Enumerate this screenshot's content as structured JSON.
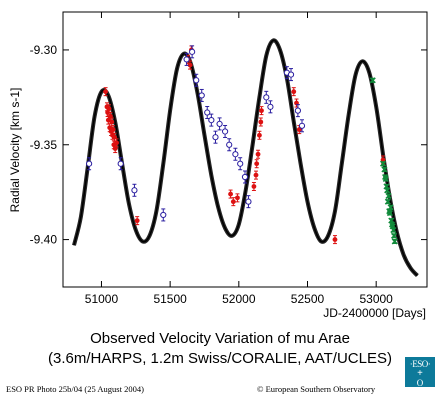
{
  "chart_data": {
    "type": "scatter",
    "title": "Observed Velocity Variation of mu Arae",
    "subtitle": "(3.6m/HARPS, 1.2m Swiss/CORALIE, AAT/UCLES)",
    "xlabel": "JD-2400000 [Days]",
    "ylabel": "Radial Velocity [km s-1]",
    "xlim": [
      50720,
      53370
    ],
    "ylim": [
      -9.425,
      -9.28
    ],
    "xticks": [
      51000,
      51500,
      52000,
      52500,
      53000
    ],
    "xtick_labels": [
      "51000",
      "51500",
      "52000",
      "52500",
      "53000"
    ],
    "yticks": [
      -9.3,
      -9.35,
      -9.4
    ],
    "ytick_labels": [
      "-9.30",
      "-9.35",
      "-9.40"
    ],
    "grid": false,
    "legend": "none",
    "model_curve": {
      "color": "#000000",
      "x": [
        50800,
        50850,
        50900,
        50950,
        51000,
        51050,
        51100,
        51150,
        51200,
        51250,
        51300,
        51350,
        51400,
        51450,
        51500,
        51550,
        51600,
        51650,
        51700,
        51750,
        51800,
        51850,
        51900,
        51950,
        52000,
        52050,
        52100,
        52150,
        52200,
        52250,
        52300,
        52350,
        52400,
        52450,
        52500,
        52550,
        52600,
        52650,
        52700,
        52750,
        52800,
        52850,
        52900,
        52950,
        53000,
        53050,
        53100,
        53150,
        53200,
        53250,
        53300
      ],
      "y": [
        -9.403,
        -9.388,
        -9.362,
        -9.335,
        -9.322,
        -9.324,
        -9.338,
        -9.36,
        -9.381,
        -9.395,
        -9.401,
        -9.398,
        -9.385,
        -9.36,
        -9.332,
        -9.31,
        -9.302,
        -9.307,
        -9.323,
        -9.345,
        -9.366,
        -9.383,
        -9.394,
        -9.398,
        -9.392,
        -9.374,
        -9.35,
        -9.325,
        -9.303,
        -9.295,
        -9.3,
        -9.315,
        -9.338,
        -9.36,
        -9.38,
        -9.394,
        -9.401,
        -9.398,
        -9.385,
        -9.36,
        -9.334,
        -9.313,
        -9.306,
        -9.312,
        -9.33,
        -9.355,
        -9.378,
        -9.396,
        -9.408,
        -9.415,
        -9.419
      ]
    },
    "series": [
      {
        "color": "#dd1111",
        "marker": "filled-circle",
        "x": [
          51030,
          51040,
          51045,
          51050,
          51055,
          51060,
          51065,
          51070,
          51075,
          51080,
          51085,
          51090,
          51095,
          51100,
          51110,
          51260,
          51630,
          51645,
          51655,
          51940,
          51960,
          51990,
          52110,
          52125,
          52130,
          52140,
          52150,
          52160,
          52165,
          52400,
          52420,
          52440,
          52700,
          53050
        ],
        "y": [
          -9.322,
          -9.33,
          -9.333,
          -9.337,
          -9.331,
          -9.341,
          -9.335,
          -9.343,
          -9.338,
          -9.345,
          -9.342,
          -9.35,
          -9.346,
          -9.352,
          -9.349,
          -9.39,
          -9.305,
          -9.308,
          -9.3,
          -9.376,
          -9.38,
          -9.378,
          -9.372,
          -9.366,
          -9.36,
          -9.355,
          -9.345,
          -9.338,
          -9.332,
          -9.322,
          -9.328,
          -9.342,
          -9.4,
          -9.358
        ]
      },
      {
        "color": "#2a1ea0",
        "marker": "open-circle",
        "x": [
          50910,
          51140,
          51240,
          51450,
          51620,
          51660,
          51690,
          51730,
          51770,
          51800,
          51830,
          51860,
          51900,
          51930,
          51975,
          52010,
          52045,
          52070,
          52200,
          52230,
          52350,
          52380,
          52430,
          52460
        ],
        "y": [
          -9.36,
          -9.36,
          -9.374,
          -9.387,
          -9.305,
          -9.301,
          -9.316,
          -9.324,
          -9.333,
          -9.337,
          -9.346,
          -9.339,
          -9.343,
          -9.35,
          -9.355,
          -9.36,
          -9.367,
          -9.38,
          -9.325,
          -9.33,
          -9.312,
          -9.313,
          -9.332,
          -9.34
        ]
      },
      {
        "color": "#108a3a",
        "marker": "cross",
        "x": [
          52975,
          53050,
          53060,
          53065,
          53070,
          53075,
          53080,
          53085,
          53090,
          53095,
          53100,
          53105,
          53110,
          53115,
          53120,
          53125,
          53130,
          53135
        ],
        "y": [
          -9.316,
          -9.36,
          -9.363,
          -9.367,
          -9.368,
          -9.372,
          -9.374,
          -9.38,
          -9.377,
          -9.385,
          -9.386,
          -9.383,
          -9.39,
          -9.392,
          -9.393,
          -9.395,
          -9.398,
          -9.401
        ]
      }
    ]
  },
  "footer": {
    "left": "ESO PR Photo 25b/04 (25 August 2004)",
    "right": "© European Southern Observatory"
  },
  "logo": {
    "line1": "·ESO·",
    "line2": "+",
    "line3": "O"
  }
}
